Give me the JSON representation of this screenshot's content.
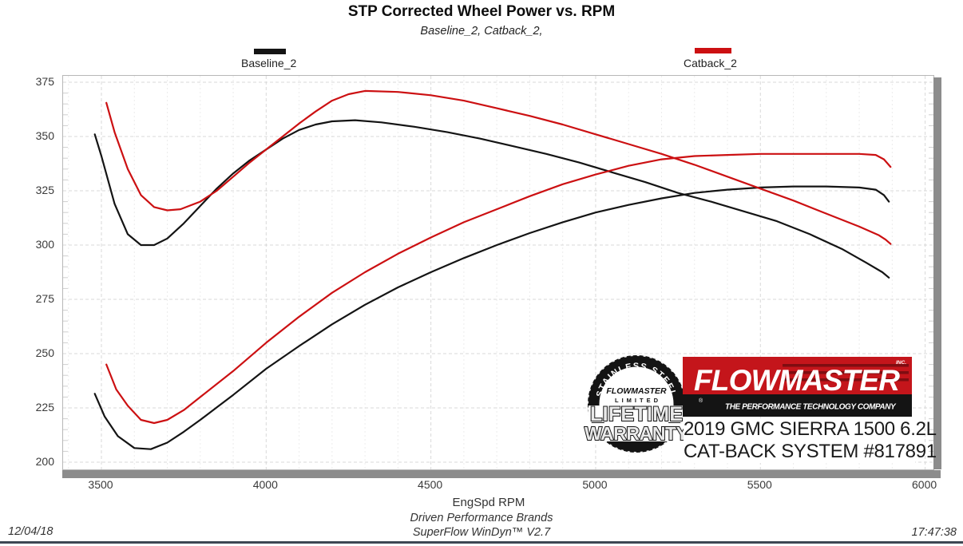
{
  "header": {
    "title": "STP Corrected Wheel Power vs. RPM",
    "subtitle": "Baseline_2, Catback_2,"
  },
  "legend": [
    {
      "label": "Baseline_2",
      "color": "#141414"
    },
    {
      "label": "Catback_2",
      "color": "#cc1012"
    }
  ],
  "axis": {
    "x_label": "EngSpd  RPM"
  },
  "footer": {
    "date": "12/04/18",
    "brand_line": "Driven Performance Brands",
    "software_line": "SuperFlow WinDyn™ V2.7",
    "time": "17:47:38"
  },
  "branding": {
    "badge": {
      "arc_text": "STAINLESS STEEL",
      "brand": "FLOWMASTER",
      "limited": "LIMITED",
      "line1": "LIFETIME",
      "line2": "WARRANTY"
    },
    "logo": {
      "brand": "FLOWMASTER",
      "inc": "INC.",
      "registered": "®",
      "tagline": "THE PERFORMANCE TECHNOLOGY COMPANY",
      "red": "#c4151b",
      "dark_red": "#7e0d11",
      "black": "#141414"
    },
    "vehicle_line1": "2019 GMC SIERRA 1500 6.2L",
    "vehicle_line2": "CAT-BACK SYSTEM #817891"
  },
  "chart_data": {
    "type": "line",
    "title": "STP Corrected Wheel Power vs. RPM",
    "xlabel": "EngSpd RPM",
    "ylabel": "",
    "xlim": [
      3384,
      6025
    ],
    "ylim": [
      199,
      378
    ],
    "x_ticks": [
      3500,
      4000,
      4500,
      5000,
      5500,
      6000
    ],
    "y_ticks": [
      375,
      350,
      325,
      300,
      275,
      250,
      225,
      200
    ],
    "grid": {
      "major": true,
      "minor_x_step_rpm": 100,
      "minor_y_tick_step": 5,
      "legend_position": "top"
    },
    "series": [
      {
        "name": "Baseline_2",
        "color": "#141414",
        "lines": [
          {
            "points": [
              [
                3480,
                351
              ],
              [
                3500,
                341
              ],
              [
                3540,
                319
              ],
              [
                3580,
                305
              ],
              [
                3620,
                300
              ],
              [
                3660,
                300
              ],
              [
                3700,
                303
              ],
              [
                3750,
                310
              ],
              [
                3800,
                318
              ],
              [
                3850,
                326
              ],
              [
                3900,
                333
              ],
              [
                3950,
                339
              ],
              [
                4000,
                344
              ],
              [
                4050,
                349
              ],
              [
                4100,
                353
              ],
              [
                4150,
                355.5
              ],
              [
                4200,
                357
              ],
              [
                4270,
                357.5
              ],
              [
                4350,
                356.5
              ],
              [
                4450,
                354.5
              ],
              [
                4550,
                352
              ],
              [
                4650,
                349
              ],
              [
                4750,
                345.5
              ],
              [
                4850,
                342
              ],
              [
                4950,
                338
              ],
              [
                5050,
                333.5
              ],
              [
                5150,
                329
              ],
              [
                5250,
                324
              ],
              [
                5350,
                320
              ],
              [
                5450,
                315.5
              ],
              [
                5550,
                311
              ],
              [
                5650,
                305
              ],
              [
                5750,
                298
              ],
              [
                5820,
                292
              ],
              [
                5870,
                287.5
              ],
              [
                5890,
                285
              ]
            ]
          },
          {
            "points": [
              [
                3480,
                231.5
              ],
              [
                3510,
                221
              ],
              [
                3550,
                212
              ],
              [
                3600,
                206.5
              ],
              [
                3650,
                206
              ],
              [
                3700,
                209
              ],
              [
                3750,
                214
              ],
              [
                3800,
                219.5
              ],
              [
                3900,
                231
              ],
              [
                4000,
                243
              ],
              [
                4100,
                253.5
              ],
              [
                4200,
                263.5
              ],
              [
                4300,
                272.5
              ],
              [
                4400,
                280.5
              ],
              [
                4500,
                287.5
              ],
              [
                4600,
                294
              ],
              [
                4700,
                300
              ],
              [
                4800,
                305.5
              ],
              [
                4900,
                310.5
              ],
              [
                5000,
                315
              ],
              [
                5100,
                318.5
              ],
              [
                5200,
                321.5
              ],
              [
                5300,
                324
              ],
              [
                5400,
                325.5
              ],
              [
                5500,
                326.5
              ],
              [
                5600,
                327
              ],
              [
                5700,
                327
              ],
              [
                5800,
                326.5
              ],
              [
                5850,
                325.5
              ],
              [
                5875,
                323
              ],
              [
                5890,
                320
              ]
            ]
          }
        ]
      },
      {
        "name": "Catback_2",
        "color": "#cc1012",
        "lines": [
          {
            "points": [
              [
                3515,
                365.5
              ],
              [
                3540,
                352
              ],
              [
                3580,
                335
              ],
              [
                3620,
                323
              ],
              [
                3660,
                317.5
              ],
              [
                3700,
                316
              ],
              [
                3740,
                316.5
              ],
              [
                3800,
                320
              ],
              [
                3850,
                325
              ],
              [
                3900,
                331.5
              ],
              [
                3950,
                338
              ],
              [
                4000,
                344
              ],
              [
                4050,
                350
              ],
              [
                4100,
                356
              ],
              [
                4150,
                361.5
              ],
              [
                4200,
                366.5
              ],
              [
                4250,
                369.5
              ],
              [
                4300,
                371
              ],
              [
                4400,
                370.5
              ],
              [
                4500,
                369
              ],
              [
                4600,
                366.5
              ],
              [
                4700,
                363
              ],
              [
                4800,
                359.5
              ],
              [
                4900,
                355.5
              ],
              [
                5000,
                351
              ],
              [
                5100,
                346.5
              ],
              [
                5200,
                342
              ],
              [
                5300,
                337
              ],
              [
                5400,
                331.5
              ],
              [
                5500,
                326
              ],
              [
                5600,
                320.5
              ],
              [
                5700,
                314.5
              ],
              [
                5800,
                308.5
              ],
              [
                5860,
                304.5
              ],
              [
                5880,
                302.5
              ],
              [
                5895,
                300.5
              ]
            ]
          },
          {
            "points": [
              [
                3515,
                245
              ],
              [
                3545,
                233.5
              ],
              [
                3580,
                226
              ],
              [
                3620,
                219.5
              ],
              [
                3660,
                218
              ],
              [
                3700,
                219.5
              ],
              [
                3750,
                224
              ],
              [
                3800,
                230
              ],
              [
                3900,
                242
              ],
              [
                4000,
                255
              ],
              [
                4100,
                267
              ],
              [
                4200,
                278
              ],
              [
                4300,
                287.5
              ],
              [
                4400,
                296
              ],
              [
                4500,
                303.5
              ],
              [
                4600,
                310.5
              ],
              [
                4700,
                316.5
              ],
              [
                4800,
                322.5
              ],
              [
                4900,
                328
              ],
              [
                5000,
                332.5
              ],
              [
                5100,
                336.5
              ],
              [
                5200,
                339.5
              ],
              [
                5300,
                341
              ],
              [
                5400,
                341.5
              ],
              [
                5500,
                342
              ],
              [
                5600,
                342
              ],
              [
                5700,
                342
              ],
              [
                5800,
                342
              ],
              [
                5850,
                341.5
              ],
              [
                5875,
                339.5
              ],
              [
                5895,
                336
              ]
            ]
          }
        ]
      }
    ]
  }
}
